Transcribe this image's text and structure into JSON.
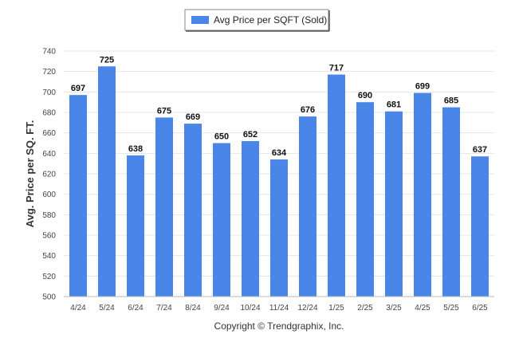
{
  "chart_data": {
    "type": "bar",
    "categories": [
      "4/24",
      "5/24",
      "6/24",
      "7/24",
      "8/24",
      "9/24",
      "10/24",
      "11/24",
      "12/24",
      "1/25",
      "2/25",
      "3/25",
      "4/25",
      "5/25",
      "6/25"
    ],
    "series": [
      {
        "name": "Avg Price per SQFT (Sold)",
        "values": [
          697,
          725,
          638,
          675,
          669,
          650,
          652,
          634,
          676,
          717,
          690,
          681,
          699,
          685,
          637
        ]
      }
    ],
    "ylabel": "Avg. Price per SQ. FT.",
    "ylim": [
      500,
      740
    ],
    "yticks": [
      500,
      520,
      540,
      560,
      580,
      600,
      620,
      640,
      660,
      680,
      700,
      720,
      740
    ],
    "grid": true,
    "legend_position": "top-center",
    "bar_color": "#4a86e8",
    "footer": "Copyright © Trendgraphix, Inc."
  }
}
